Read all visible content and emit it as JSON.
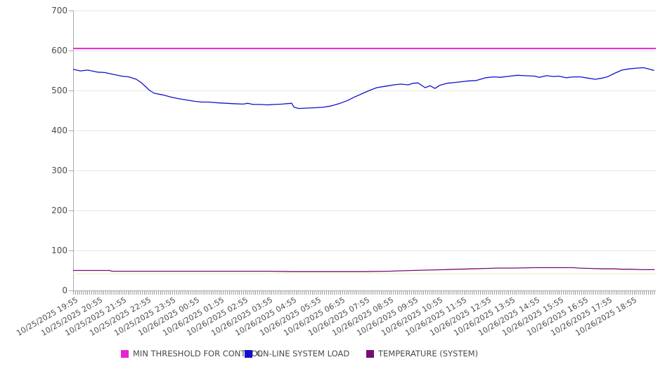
{
  "chart_data": {
    "type": "line",
    "title": "",
    "xlabel": "",
    "ylabel": "",
    "ylim": [
      0,
      700
    ],
    "yticks": [
      0,
      100,
      200,
      300,
      400,
      500,
      600,
      700
    ],
    "x_span": 24,
    "grid": "horizontal-only",
    "legend_position": "bottom",
    "axis_color": "#ababab",
    "gridline_color": "#e8e8e8",
    "tick_label_color": "#4d4d4d",
    "categories": [
      "10/25/2025 19:55",
      "10/25/2025 20:55",
      "10/25/2025 21:55",
      "10/25/2025 22:55",
      "10/25/2025 23:55",
      "10/26/2025 00:55",
      "10/26/2025 01:55",
      "10/26/2025 02:55",
      "10/26/2025 03:55",
      "10/26/2025 04:55",
      "10/26/2025 05:55",
      "10/26/2025 06:55",
      "10/26/2025 07:55",
      "10/26/2025 08:55",
      "10/26/2025 09:55",
      "10/26/2025 10:55",
      "10/26/2025 11:55",
      "10/26/2025 12:55",
      "10/26/2025 13:55",
      "10/26/2025 14:55",
      "10/26/2025 15:55",
      "10/26/2025 16:55",
      "10/26/2025 17:55",
      "10/26/2025 18:55"
    ],
    "series": [
      {
        "name": "MIN THRESHOLD FOR CONTROL",
        "color": "#e823d4",
        "points": [
          [
            0,
            605
          ],
          [
            24,
            605
          ]
        ]
      },
      {
        "name": "ON-LINE SYSTEM LOAD",
        "color": "#1111cc",
        "points": [
          [
            0,
            553
          ],
          [
            0.3,
            549
          ],
          [
            0.6,
            551
          ],
          [
            1,
            546
          ],
          [
            1.3,
            545
          ],
          [
            1.6,
            541
          ],
          [
            2,
            536
          ],
          [
            2.3,
            534
          ],
          [
            2.6,
            528
          ],
          [
            2.8,
            520
          ],
          [
            3,
            509
          ],
          [
            3.15,
            500
          ],
          [
            3.35,
            493
          ],
          [
            3.7,
            489
          ],
          [
            4,
            484
          ],
          [
            4.3,
            480
          ],
          [
            4.6,
            477
          ],
          [
            5,
            473
          ],
          [
            5.3,
            471
          ],
          [
            5.6,
            471
          ],
          [
            6,
            469
          ],
          [
            6.3,
            468
          ],
          [
            6.6,
            467
          ],
          [
            7,
            466
          ],
          [
            7.2,
            468
          ],
          [
            7.4,
            465
          ],
          [
            7.7,
            465
          ],
          [
            8,
            464
          ],
          [
            8.3,
            465
          ],
          [
            8.6,
            466
          ],
          [
            9,
            468
          ],
          [
            9.1,
            458
          ],
          [
            9.3,
            455
          ],
          [
            9.6,
            456
          ],
          [
            10,
            457
          ],
          [
            10.3,
            458
          ],
          [
            10.6,
            461
          ],
          [
            11,
            468
          ],
          [
            11.3,
            475
          ],
          [
            11.6,
            484
          ],
          [
            11.9,
            492
          ],
          [
            12.2,
            500
          ],
          [
            12.5,
            507
          ],
          [
            12.8,
            510
          ],
          [
            13,
            512
          ],
          [
            13.2,
            514
          ],
          [
            13.5,
            516
          ],
          [
            13.8,
            514
          ],
          [
            14,
            518
          ],
          [
            14.2,
            519
          ],
          [
            14.5,
            507
          ],
          [
            14.7,
            512
          ],
          [
            14.9,
            505
          ],
          [
            15.1,
            513
          ],
          [
            15.4,
            518
          ],
          [
            15.7,
            520
          ],
          [
            16,
            522
          ],
          [
            16.3,
            524
          ],
          [
            16.6,
            525
          ],
          [
            17,
            532
          ],
          [
            17.3,
            534
          ],
          [
            17.6,
            533
          ],
          [
            18,
            536
          ],
          [
            18.3,
            538
          ],
          [
            18.6,
            537
          ],
          [
            19,
            536
          ],
          [
            19.2,
            533
          ],
          [
            19.5,
            537
          ],
          [
            19.8,
            535
          ],
          [
            20,
            536
          ],
          [
            20.3,
            532
          ],
          [
            20.6,
            534
          ],
          [
            20.9,
            534
          ],
          [
            21.2,
            531
          ],
          [
            21.5,
            528
          ],
          [
            21.8,
            531
          ],
          [
            22,
            534
          ],
          [
            22.3,
            543
          ],
          [
            22.6,
            551
          ],
          [
            22.9,
            554
          ],
          [
            23.2,
            556
          ],
          [
            23.5,
            557
          ],
          [
            23.7,
            554
          ],
          [
            23.93,
            550
          ]
        ]
      },
      {
        "name": "TEMPERATURE (SYSTEM)",
        "color": "#760d76",
        "points": [
          [
            0,
            50
          ],
          [
            0.5,
            50
          ],
          [
            1,
            50
          ],
          [
            1.5,
            50
          ],
          [
            1.6,
            48
          ],
          [
            2.5,
            48
          ],
          [
            4,
            48
          ],
          [
            6,
            48
          ],
          [
            8,
            48
          ],
          [
            9,
            47
          ],
          [
            10.5,
            47
          ],
          [
            12,
            47
          ],
          [
            13,
            48
          ],
          [
            13.4,
            49
          ],
          [
            14,
            50
          ],
          [
            14.7,
            51
          ],
          [
            15.3,
            52
          ],
          [
            15.8,
            53
          ],
          [
            16.5,
            54
          ],
          [
            17,
            55
          ],
          [
            17.5,
            56
          ],
          [
            18.2,
            56
          ],
          [
            19,
            57
          ],
          [
            20,
            57
          ],
          [
            20.6,
            57
          ],
          [
            20.8,
            56
          ],
          [
            21.3,
            55
          ],
          [
            21.8,
            54
          ],
          [
            22.3,
            54
          ],
          [
            22.6,
            53
          ],
          [
            23,
            53
          ],
          [
            23.4,
            52
          ],
          [
            23.95,
            52
          ]
        ]
      }
    ],
    "unlabeled_line": {
      "color": "#f4f4cd",
      "value": 42
    }
  }
}
